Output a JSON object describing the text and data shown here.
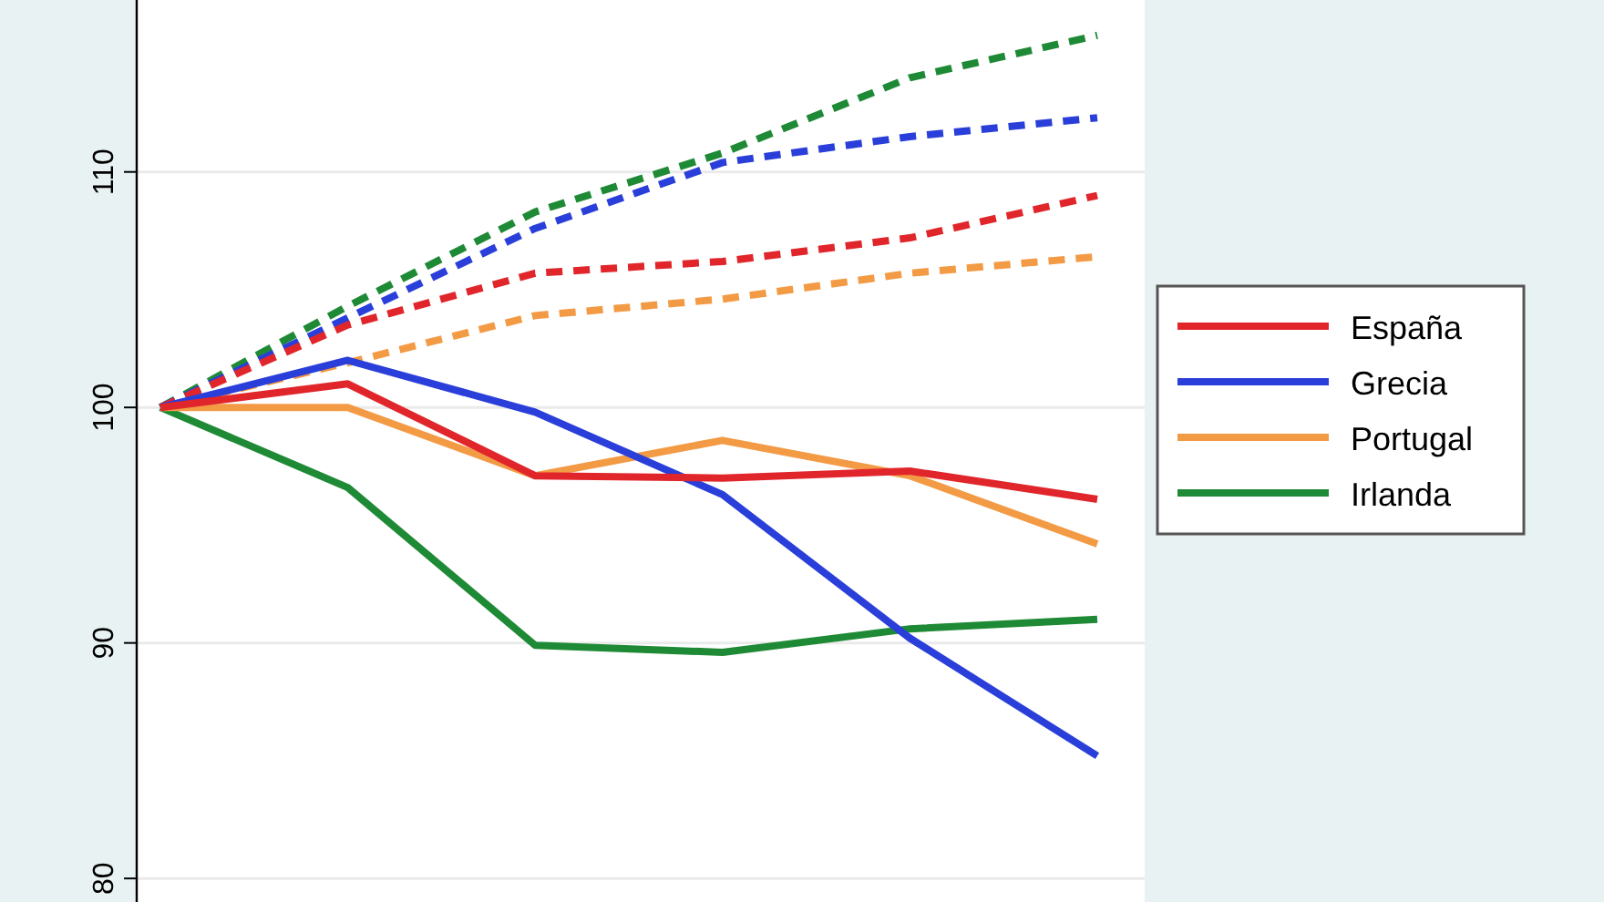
{
  "chart_data": {
    "type": "line",
    "categories": [
      null,
      null,
      null,
      null,
      null,
      null
    ],
    "ylim": [
      79,
      117.3
    ],
    "yticks": [
      80,
      90,
      100,
      110
    ],
    "grid": "y",
    "legend": "right",
    "tick_labels": "y",
    "series": [
      {
        "name": "España",
        "color": "#e0262b",
        "values": [
          100,
          101.0,
          97.1,
          97.0,
          97.3,
          96.1
        ]
      },
      {
        "name": "Grecia",
        "color": "#2a3fd9",
        "values": [
          100,
          102.0,
          99.8,
          96.3,
          90.2,
          85.2
        ]
      },
      {
        "name": "Portugal",
        "color": "#f39a45",
        "values": [
          100,
          100.0,
          97.1,
          98.6,
          97.1,
          94.2
        ]
      },
      {
        "name": "Irlanda",
        "color": "#1f8a35",
        "values": [
          100,
          96.6,
          89.9,
          89.6,
          90.6,
          91.0
        ]
      },
      {
        "color": "#e0262b",
        "line_style": "dashed",
        "values": [
          100,
          103.5,
          105.7,
          106.2,
          107.2,
          109.0
        ]
      },
      {
        "color": "#2a3fd9",
        "line_style": "dashed",
        "values": [
          100,
          103.8,
          107.6,
          110.4,
          111.5,
          112.3
        ]
      },
      {
        "color": "#f39a45",
        "line_style": "dashed",
        "values": [
          100,
          101.9,
          103.9,
          104.6,
          105.7,
          106.4
        ]
      },
      {
        "color": "#1f8a35",
        "line_style": "dashed",
        "values": [
          100,
          104.3,
          108.3,
          110.8,
          114.0,
          115.8
        ]
      }
    ]
  }
}
